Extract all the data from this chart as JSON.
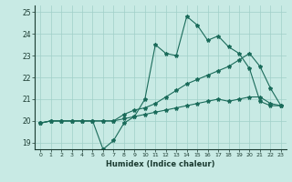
{
  "title": "",
  "xlabel": "Humidex (Indice chaleur)",
  "background_color": "#c8eae4",
  "grid_color": "#a0cfc8",
  "line_color": "#1a6b5a",
  "x_data": [
    0,
    1,
    2,
    3,
    4,
    5,
    6,
    7,
    8,
    9,
    10,
    11,
    12,
    13,
    14,
    15,
    16,
    17,
    18,
    19,
    20,
    21,
    22,
    23
  ],
  "line1_y": [
    19.9,
    20.0,
    20.0,
    20.0,
    20.0,
    20.0,
    18.7,
    19.1,
    19.9,
    20.2,
    21.0,
    23.5,
    23.1,
    23.0,
    24.8,
    24.4,
    23.7,
    23.9,
    23.4,
    23.1,
    22.4,
    20.9,
    20.7,
    20.7
  ],
  "line2_y": [
    19.9,
    20.0,
    20.0,
    20.0,
    20.0,
    20.0,
    20.0,
    20.0,
    20.3,
    20.5,
    20.6,
    20.8,
    21.1,
    21.4,
    21.7,
    21.9,
    22.1,
    22.3,
    22.5,
    22.8,
    23.1,
    22.5,
    21.5,
    20.7
  ],
  "line3_y": [
    19.9,
    20.0,
    20.0,
    20.0,
    20.0,
    20.0,
    20.0,
    20.0,
    20.1,
    20.2,
    20.3,
    20.4,
    20.5,
    20.6,
    20.7,
    20.8,
    20.9,
    21.0,
    20.9,
    21.0,
    21.1,
    21.1,
    20.8,
    20.7
  ],
  "ylim": [
    18.7,
    25.3
  ],
  "xlim": [
    -0.5,
    23.5
  ],
  "yticks": [
    19,
    20,
    21,
    22,
    23,
    24,
    25
  ],
  "xticks": [
    0,
    1,
    2,
    3,
    4,
    5,
    6,
    7,
    8,
    9,
    10,
    11,
    12,
    13,
    14,
    15,
    16,
    17,
    18,
    19,
    20,
    21,
    22,
    23
  ]
}
